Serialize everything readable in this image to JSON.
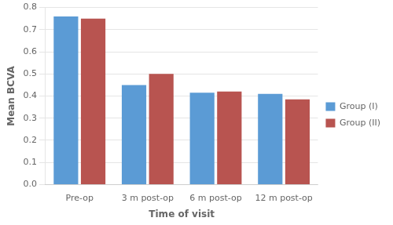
{
  "chart_data": {
    "type": "bar",
    "categories": [
      "Pre-op",
      "3 m post-op",
      "6 m post-op",
      "12 m post-op"
    ],
    "series": [
      {
        "name": "Group (I)",
        "color": "#5B9BD5",
        "values": [
          0.76,
          0.45,
          0.415,
          0.41
        ]
      },
      {
        "name": "Group (II)",
        "color": "#B85450",
        "values": [
          0.75,
          0.5,
          0.42,
          0.385
        ]
      }
    ],
    "xlabel": "Time of visit",
    "ylabel": "Mean BCVA",
    "ylim": [
      0,
      0.8
    ],
    "yticks": [
      {
        "value": 0,
        "label": "0.0"
      },
      0.1,
      0.2,
      0.3,
      0.4,
      0.5,
      0.6,
      0.7,
      0.8
    ],
    "grid": true,
    "legend": "right"
  }
}
